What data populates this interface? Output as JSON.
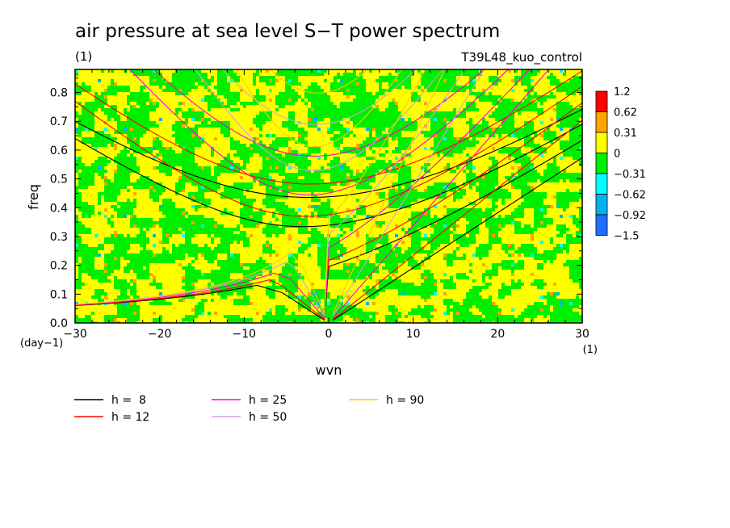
{
  "chart_data": {
    "type": "heatmap",
    "title": "air pressure at sea level S−T power spectrum",
    "subtitle_left": "(1)",
    "subtitle_right": "T39L48_kuo_control",
    "xlabel": "wvn",
    "ylabel": "freq",
    "x_unit": "(1)",
    "y_unit": "(day−1)",
    "xlim": [
      -30,
      30
    ],
    "ylim": [
      0,
      0.88
    ],
    "x_ticks": [
      -30,
      -20,
      -10,
      0,
      10,
      20,
      30
    ],
    "x_tick_labels": [
      "−30",
      "−20",
      "−10",
      "0",
      "10",
      "20",
      "30"
    ],
    "y_ticks": [
      0,
      0.1,
      0.2,
      0.3,
      0.4,
      0.5,
      0.6,
      0.7,
      0.8
    ],
    "y_tick_labels": [
      "0.0",
      "0.1",
      "0.2",
      "0.3",
      "0.4",
      "0.5",
      "0.6",
      "0.7",
      "0.8"
    ],
    "colorbar": {
      "labels": [
        "1.2",
        "0.62",
        "0.31",
        "0",
        "−0.31",
        "−0.62",
        "−0.92",
        "−1.5"
      ],
      "colors": [
        "#ff0000",
        "#ffa500",
        "#ffff00",
        "#00ee00",
        "#00ffff",
        "#00b2ee",
        "#1e6eff"
      ]
    },
    "field_value_range": [
      -1.5,
      1.2
    ],
    "dispersion_curves": [
      {
        "name": "h =  8",
        "h": 8,
        "color": "#000000"
      },
      {
        "name": "h = 12",
        "h": 12,
        "color": "#ff0000"
      },
      {
        "name": "h = 25",
        "h": 25,
        "color": "#ff00cc"
      },
      {
        "name": "h = 50",
        "h": 50,
        "color": "#d8a0d8"
      },
      {
        "name": "h = 90",
        "h": 90,
        "color": "#ffcc00"
      }
    ],
    "grid": false,
    "legend_position": "bottom-left"
  }
}
